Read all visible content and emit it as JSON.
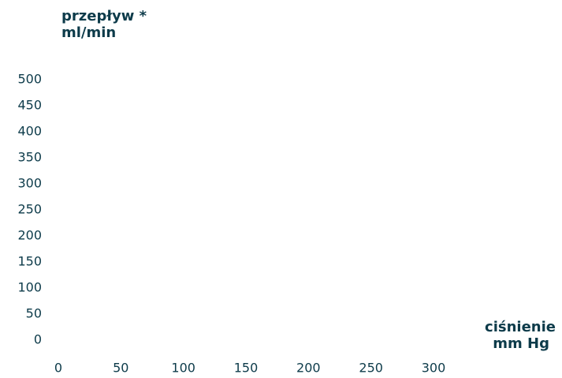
{
  "chart_data": {
    "type": "line",
    "title": "",
    "ylabel": [
      "przepływ *",
      "ml/min"
    ],
    "xlabel": [
      "ciśnienie",
      "mm Hg"
    ],
    "x_ticks": [
      "0",
      "50",
      "100",
      "150",
      "200",
      "250",
      "300"
    ],
    "y_ticks": [
      "500",
      "450",
      "400",
      "350",
      "300",
      "250",
      "200",
      "150",
      "100",
      "50",
      "0"
    ],
    "xlim": [
      0,
      300
    ],
    "ylim": [
      0,
      500
    ],
    "grid": false,
    "series": []
  }
}
